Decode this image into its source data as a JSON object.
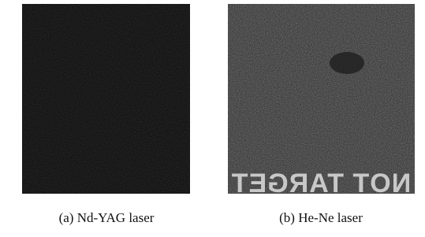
{
  "figure": {
    "panels": [
      {
        "caption": "(a) Nd-YAG laser"
      },
      {
        "caption": "(b) He-Ne laser",
        "image_text": "NOT TARGET"
      }
    ]
  }
}
